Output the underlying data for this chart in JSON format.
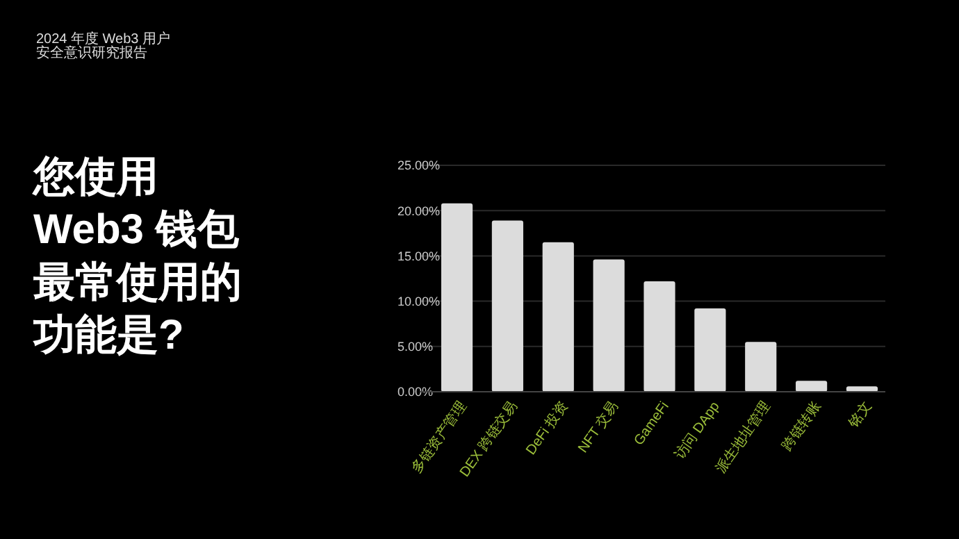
{
  "chart_data": {
    "type": "bar",
    "title": "您使用Web3 钱包最常使用的功能是?",
    "subtitle": "2024 年度 Web3 用户安全意识研究报告",
    "categories": [
      "多链资产管理",
      "DEX 跨链交易",
      "DeFi 投资",
      "NFT 交易",
      "GameFi",
      "访问 DApp",
      "派生地址管理",
      "跨链转账",
      "铭文"
    ],
    "values": [
      20.8,
      18.9,
      16.5,
      14.6,
      12.2,
      9.2,
      5.5,
      1.2,
      0.6
    ],
    "color": "#dcdcdc",
    "ylim": [
      0,
      25
    ],
    "yticks": [
      {
        "value": 0,
        "label": "0.00%"
      },
      {
        "value": 5,
        "label": "5.00%"
      },
      {
        "value": 10,
        "label": "10.00%"
      },
      {
        "value": 15,
        "label": "15.00%"
      },
      {
        "value": 20,
        "label": "20.00%"
      },
      {
        "value": 25,
        "label": "25.00%"
      }
    ],
    "grid": "y"
  }
}
